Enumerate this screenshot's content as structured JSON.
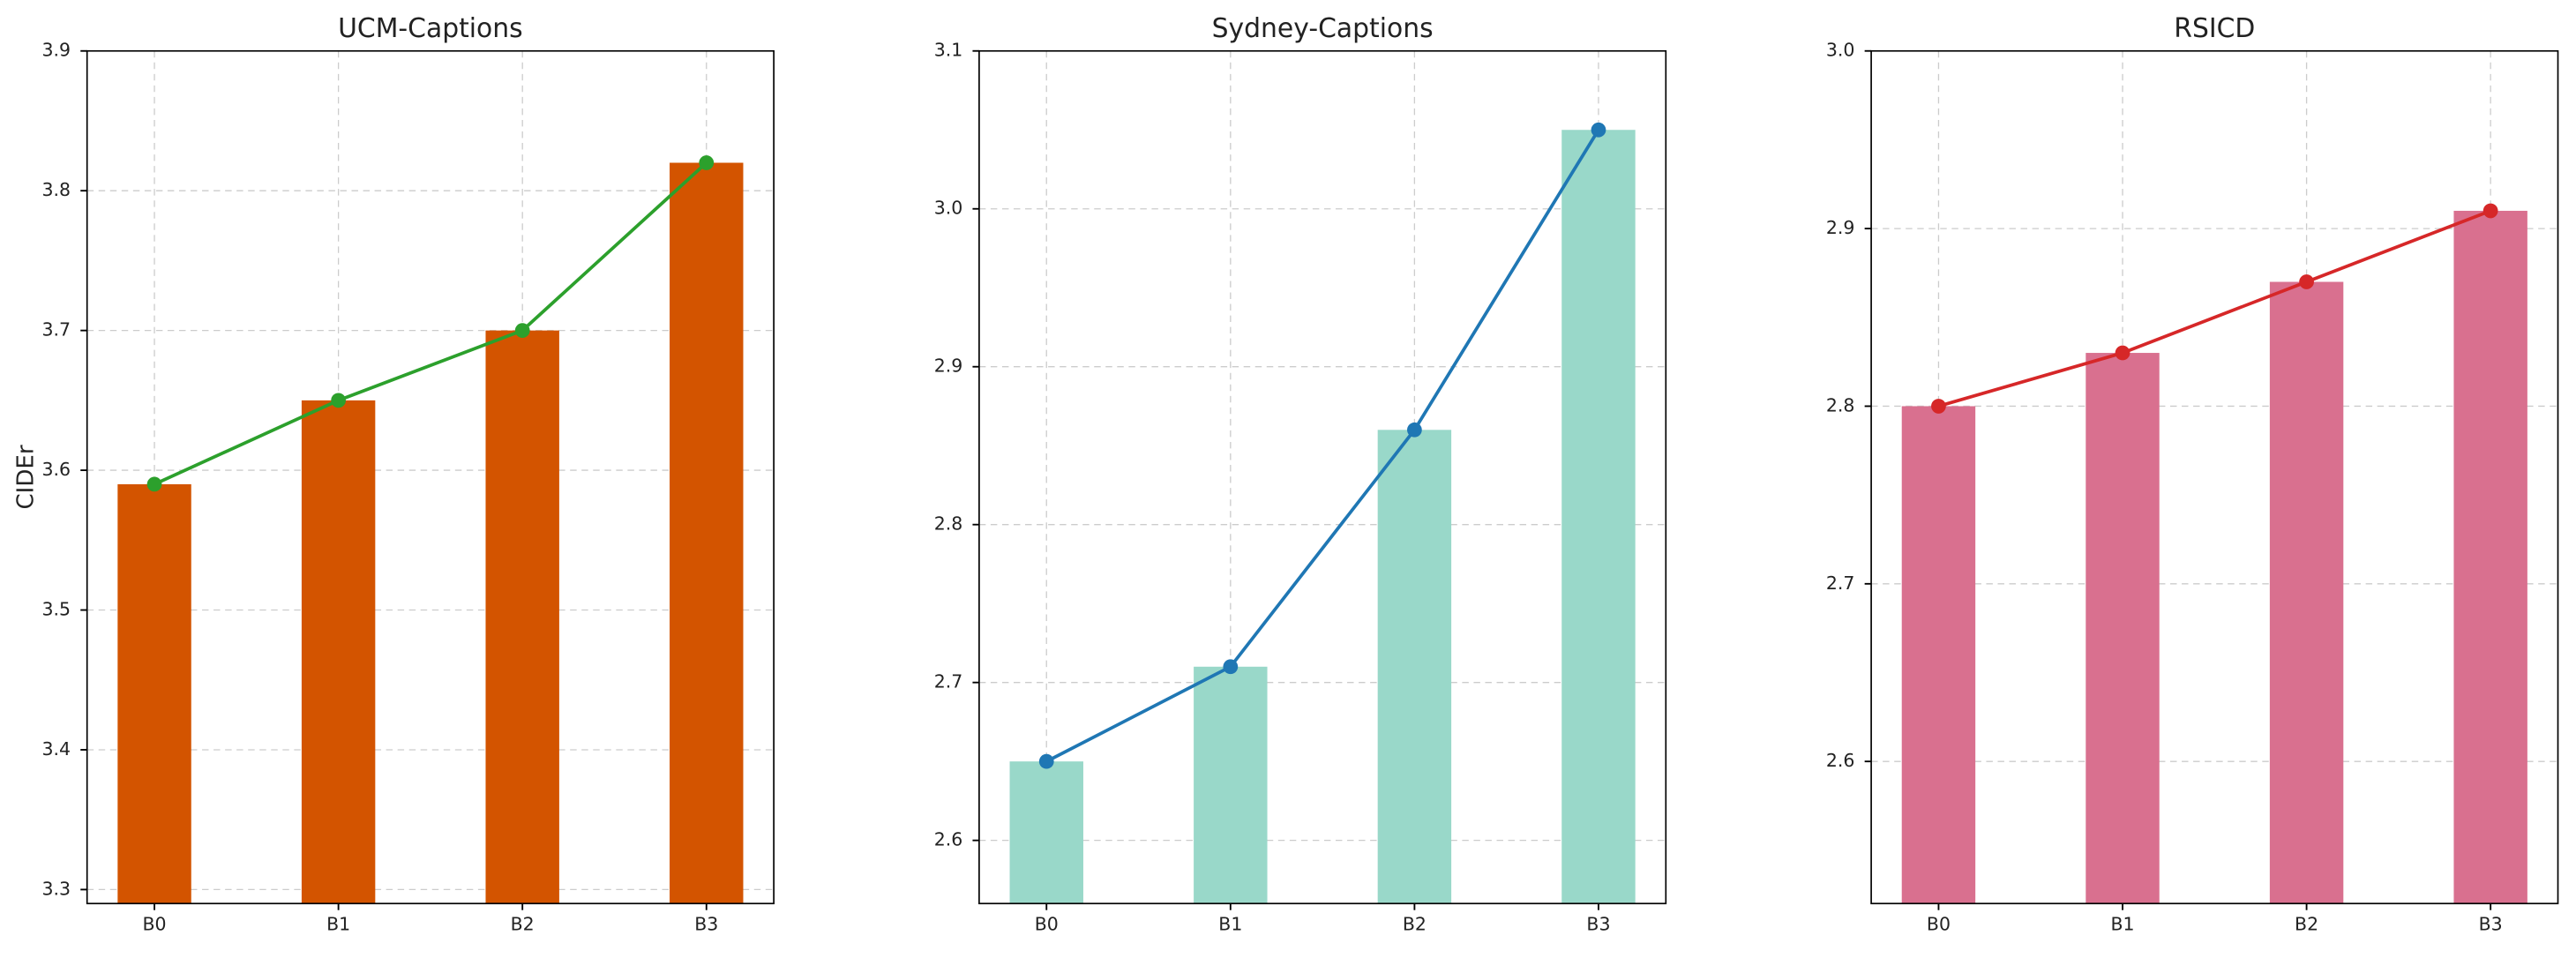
{
  "chart_data": [
    {
      "type": "bar_line",
      "title": "UCM-Captions",
      "y_label": "CIDEr",
      "categories": [
        "B0",
        "B1",
        "B2",
        "B3"
      ],
      "values": [
        3.59,
        3.65,
        3.7,
        3.82
      ],
      "bar_color": "#d35400",
      "line_color": "#2ca02c",
      "ylim": [
        3.29,
        3.9
      ],
      "yticks": [
        3.3,
        3.4,
        3.5,
        3.6,
        3.7,
        3.8,
        3.9
      ],
      "grid": true
    },
    {
      "type": "bar_line",
      "title": "Sydney-Captions",
      "categories": [
        "B0",
        "B1",
        "B2",
        "B3"
      ],
      "values": [
        2.65,
        2.71,
        2.86,
        3.05
      ],
      "bar_color": "#99d8c9",
      "line_color": "#1f77b4",
      "ylim": [
        2.56,
        3.1
      ],
      "yticks": [
        2.6,
        2.7,
        2.8,
        2.9,
        {
          "value": 3.0,
          "label": "3.0"
        },
        3.1
      ],
      "grid": true
    },
    {
      "type": "bar_line",
      "title": "RSICD",
      "categories": [
        "B0",
        "B1",
        "B2",
        "B3"
      ],
      "values": [
        2.8,
        2.83,
        2.87,
        2.91
      ],
      "bar_color": "#d9708f",
      "line_color": "#d62728",
      "ylim": [
        2.52,
        3.0
      ],
      "yticks": [
        2.6,
        2.7,
        2.8,
        2.9,
        {
          "value": 3.0,
          "label": "3.0"
        }
      ],
      "grid": true
    }
  ]
}
